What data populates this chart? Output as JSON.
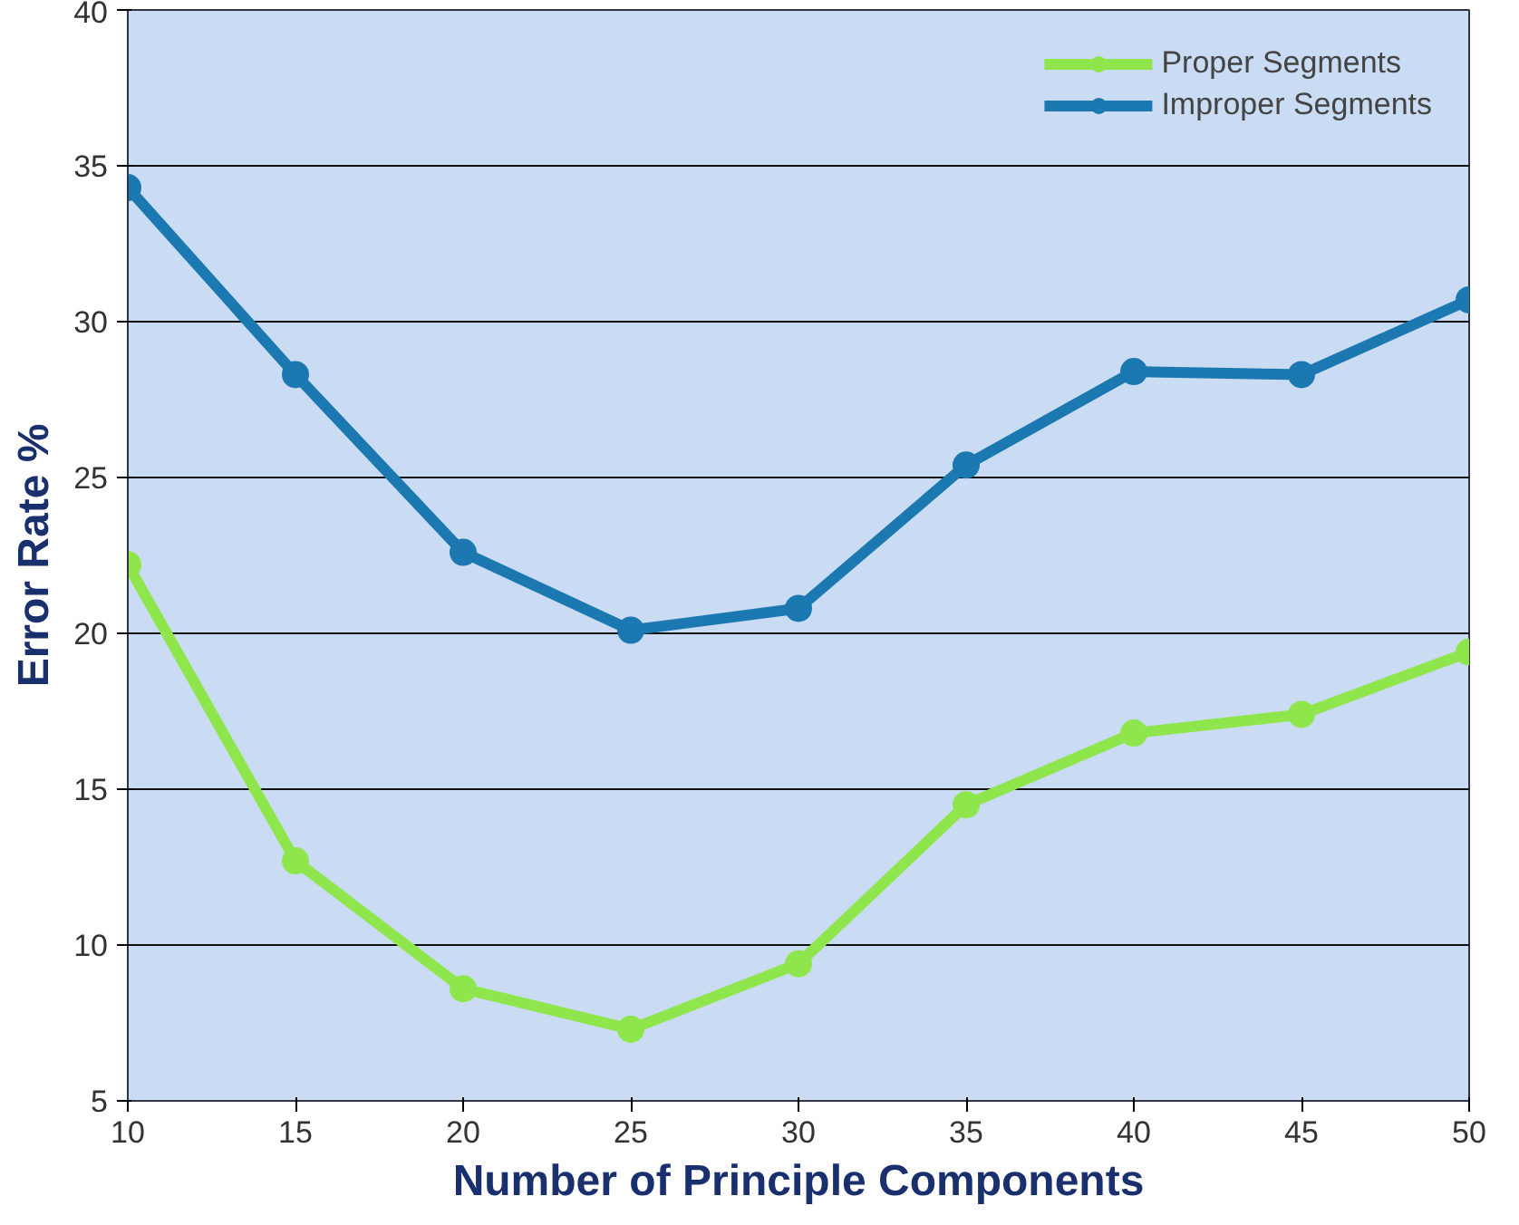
{
  "chart_data": {
    "type": "line",
    "xlabel": "Number of Principle Components",
    "ylabel": "Error Rate %",
    "x": [
      10,
      15,
      20,
      25,
      30,
      35,
      40,
      45,
      50
    ],
    "series": [
      {
        "name": "Proper Segments",
        "color": "#8ee64c",
        "values": [
          22.2,
          12.7,
          8.6,
          7.3,
          9.4,
          14.5,
          16.8,
          17.4,
          19.4
        ]
      },
      {
        "name": "Improper Segments",
        "color": "#1c78b0",
        "values": [
          34.3,
          28.3,
          22.6,
          20.1,
          20.8,
          25.4,
          28.4,
          28.3,
          30.7
        ]
      }
    ],
    "xlim": [
      10,
      50
    ],
    "ylim": [
      5,
      40
    ],
    "xticks": [
      10,
      15,
      20,
      25,
      30,
      35,
      40,
      45,
      50
    ],
    "yticks": [
      5,
      10,
      15,
      20,
      25,
      30,
      35,
      40
    ],
    "grid": "y",
    "legend": "top right",
    "marker": "circle",
    "line_style": "solid"
  }
}
